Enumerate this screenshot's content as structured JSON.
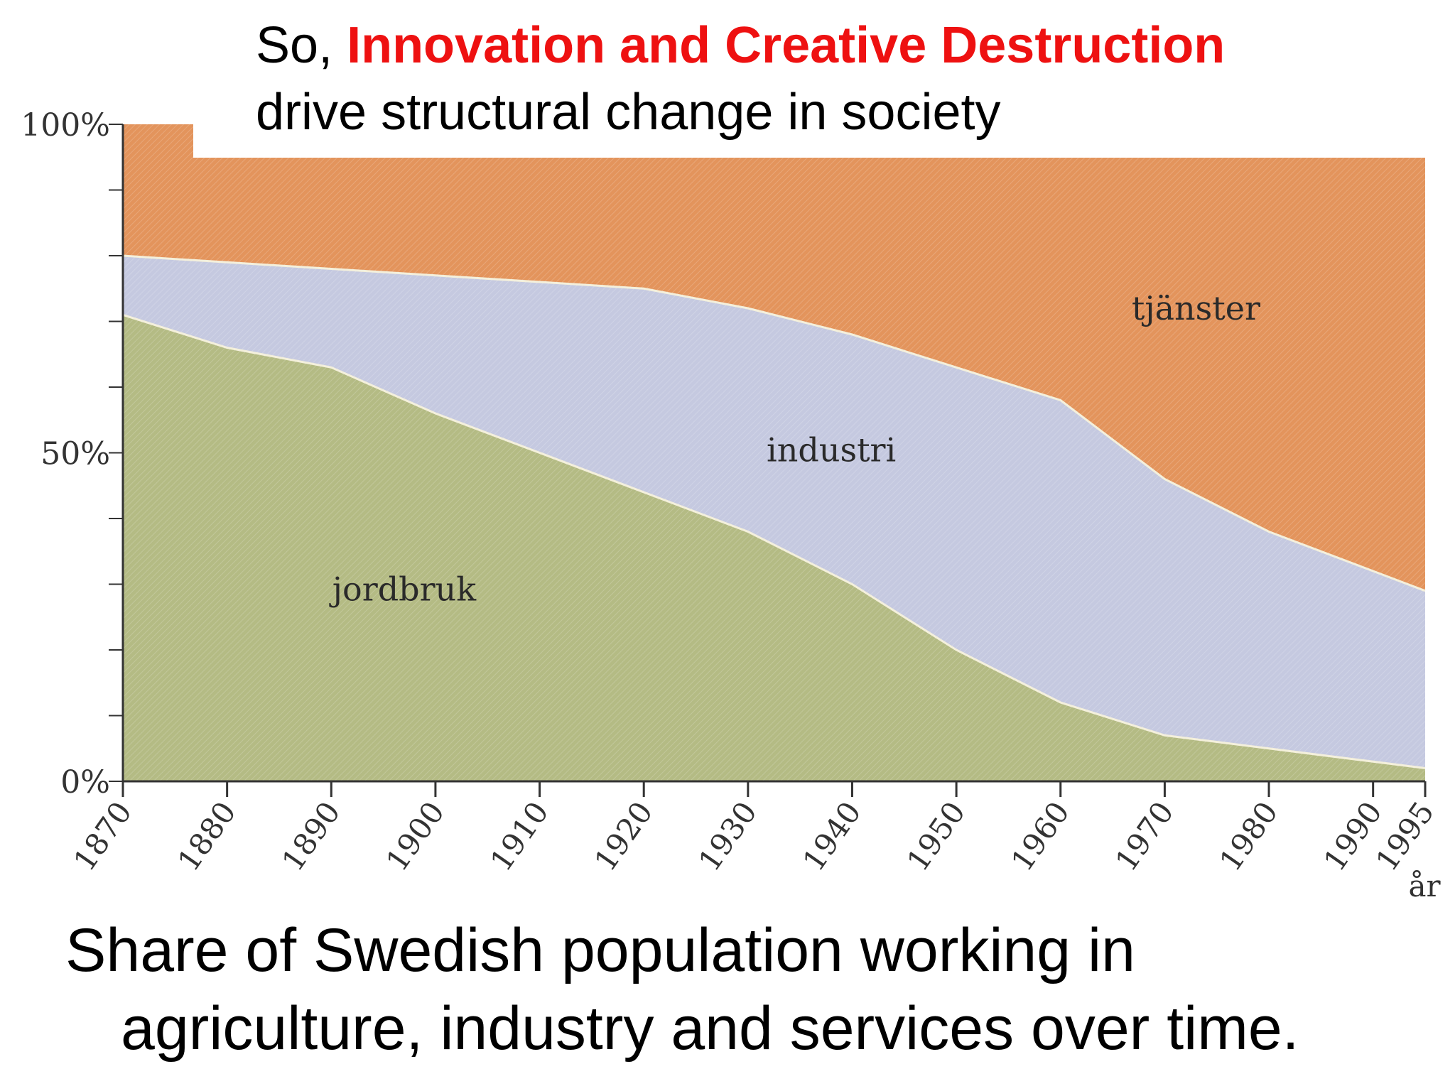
{
  "header": {
    "prefix": "So, ",
    "highlight": "Innovation and Creative Destruction",
    "line2": "drive structural change in society",
    "highlight_color": "#ee1111"
  },
  "caption": {
    "line1": "Share of Swedish population working in",
    "line2": "agriculture, industry and services over time."
  },
  "chart_data": {
    "type": "area",
    "stacked": true,
    "x": [
      1870,
      1880,
      1890,
      1900,
      1910,
      1920,
      1930,
      1940,
      1950,
      1960,
      1970,
      1980,
      1990,
      1995
    ],
    "x_tick_labels": [
      "1870",
      "1880",
      "1890",
      "1900",
      "1910",
      "1920",
      "1930",
      "1940",
      "1950",
      "1960",
      "1970",
      "1980",
      "1990",
      "1995"
    ],
    "xlabel": "år",
    "y_tick_labels": [
      "0%",
      "50%",
      "100%"
    ],
    "y_tick_values": [
      0,
      50,
      100
    ],
    "ylim": [
      0,
      100
    ],
    "grid": false,
    "series": [
      {
        "name": "jordbruk",
        "color": "#b4bb84",
        "values": [
          71,
          66,
          63,
          56,
          50,
          44,
          38,
          30,
          20,
          12,
          7,
          5,
          3,
          2
        ]
      },
      {
        "name": "industri",
        "color": "#c5c9e0",
        "values": [
          9,
          13,
          15,
          21,
          26,
          31,
          34,
          38,
          43,
          46,
          39,
          33,
          29,
          27
        ]
      },
      {
        "name": "tjänster",
        "color": "#e3945c",
        "values": [
          20,
          21,
          22,
          23,
          24,
          25,
          28,
          32,
          37,
          42,
          54,
          62,
          68,
          71
        ]
      }
    ]
  }
}
